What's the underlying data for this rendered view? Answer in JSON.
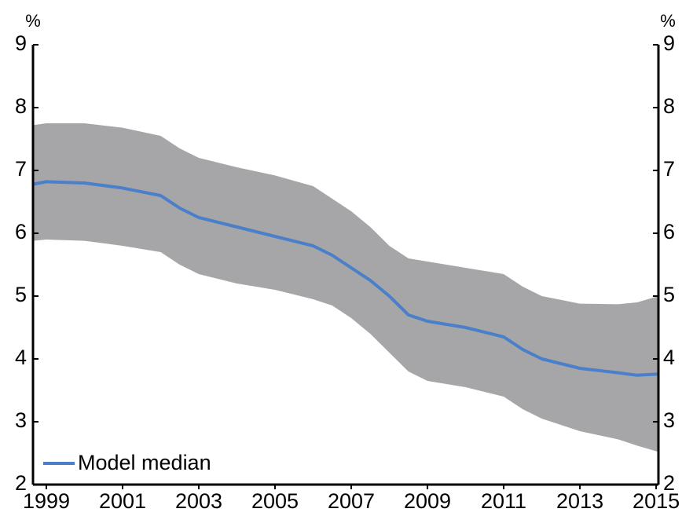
{
  "chart_data": {
    "type": "line",
    "ylabel": "%",
    "y2label": "%",
    "x": [
      1998.65,
      1999,
      2000,
      2001,
      2002,
      2002.5,
      2003,
      2004,
      2005,
      2006,
      2006.5,
      2007,
      2007.5,
      2008,
      2008.5,
      2009,
      2010,
      2011,
      2011.5,
      2012,
      2013,
      2014,
      2014.5,
      2015.06
    ],
    "series": [
      {
        "name": "Model median",
        "color": "#4a7fc9",
        "values": [
          6.78,
          6.82,
          6.8,
          6.72,
          6.6,
          6.4,
          6.25,
          6.1,
          5.95,
          5.8,
          5.65,
          5.45,
          5.25,
          5.0,
          4.7,
          4.6,
          4.5,
          4.35,
          4.15,
          4.0,
          3.85,
          3.78,
          3.74,
          3.76
        ]
      }
    ],
    "band": {
      "color": "#a6a6a8",
      "upper": [
        7.72,
        7.75,
        7.75,
        7.68,
        7.55,
        7.35,
        7.2,
        7.05,
        6.92,
        6.75,
        6.55,
        6.35,
        6.1,
        5.8,
        5.6,
        5.55,
        5.45,
        5.35,
        5.15,
        5.0,
        4.88,
        4.87,
        4.9,
        5.0
      ],
      "lower": [
        5.88,
        5.9,
        5.88,
        5.8,
        5.7,
        5.5,
        5.35,
        5.2,
        5.1,
        4.95,
        4.85,
        4.65,
        4.4,
        4.1,
        3.8,
        3.65,
        3.55,
        3.4,
        3.2,
        3.05,
        2.85,
        2.72,
        2.62,
        2.52
      ]
    },
    "xlim": [
      1998.65,
      2015.06
    ],
    "xticks": [
      1999,
      2001,
      2003,
      2005,
      2007,
      2009,
      2011,
      2013,
      2015
    ],
    "ylim": [
      2,
      9
    ],
    "yticks": [
      2,
      3,
      4,
      5,
      6,
      7,
      8,
      9
    ],
    "y2lim": [
      2,
      9
    ],
    "y2ticks": [
      2,
      3,
      4,
      5,
      6,
      7,
      8,
      9
    ]
  }
}
